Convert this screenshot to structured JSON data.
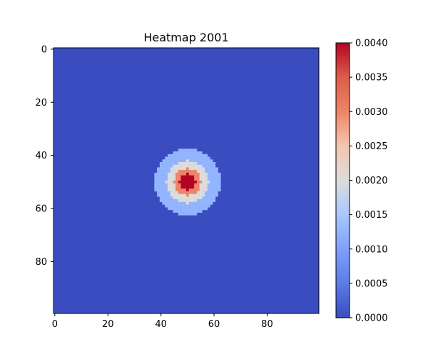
{
  "chart_data": {
    "type": "heatmap",
    "title": "Heatmap 2001",
    "xlabel": "",
    "ylabel": "",
    "grid": false,
    "rows": 100,
    "cols": 100,
    "x_ticks": [
      {
        "value": 0,
        "label": "0"
      },
      {
        "value": 20,
        "label": "20"
      },
      {
        "value": 40,
        "label": "40"
      },
      {
        "value": 60,
        "label": "60"
      },
      {
        "value": 80,
        "label": "80"
      }
    ],
    "y_ticks": [
      {
        "value": 0,
        "label": "0"
      },
      {
        "value": 20,
        "label": "20"
      },
      {
        "value": 40,
        "label": "40"
      },
      {
        "value": 60,
        "label": "60"
      },
      {
        "value": 80,
        "label": "80"
      }
    ],
    "peak_center": {
      "row": 50,
      "col": 50
    },
    "levels": [
      {
        "max_radius": 3,
        "value": 0.004,
        "color": "#b40426"
      },
      {
        "max_radius": 5,
        "value": 0.003,
        "color": "#ee8468"
      },
      {
        "max_radius": 8,
        "value": 0.0022,
        "color": "#dddcdc"
      },
      {
        "max_radius": 12.5,
        "value": 0.0012,
        "color": "#93b5fe"
      }
    ],
    "background": {
      "value": 0.0,
      "color": "#3b4cc0"
    },
    "colorbar": {
      "min": 0.0,
      "max": 0.004,
      "ticks": [
        {
          "value": 0.0,
          "label": "0.0000"
        },
        {
          "value": 0.0005,
          "label": "0.0005"
        },
        {
          "value": 0.001,
          "label": "0.0010"
        },
        {
          "value": 0.0015,
          "label": "0.0015"
        },
        {
          "value": 0.002,
          "label": "0.0020"
        },
        {
          "value": 0.0025,
          "label": "0.0025"
        },
        {
          "value": 0.003,
          "label": "0.0030"
        },
        {
          "value": 0.0035,
          "label": "0.0035"
        },
        {
          "value": 0.004,
          "label": "0.0040"
        }
      ],
      "stops": [
        {
          "offset": 0.0,
          "color": "#3b4cc0"
        },
        {
          "offset": 0.125,
          "color": "#5b7ce6"
        },
        {
          "offset": 0.25,
          "color": "#7ea0f9"
        },
        {
          "offset": 0.375,
          "color": "#aac7fd"
        },
        {
          "offset": 0.5,
          "color": "#dddcdc"
        },
        {
          "offset": 0.625,
          "color": "#f3c6b0"
        },
        {
          "offset": 0.75,
          "color": "#ee8468"
        },
        {
          "offset": 0.875,
          "color": "#dc5d4a"
        },
        {
          "offset": 1.0,
          "color": "#b40426"
        }
      ]
    }
  }
}
